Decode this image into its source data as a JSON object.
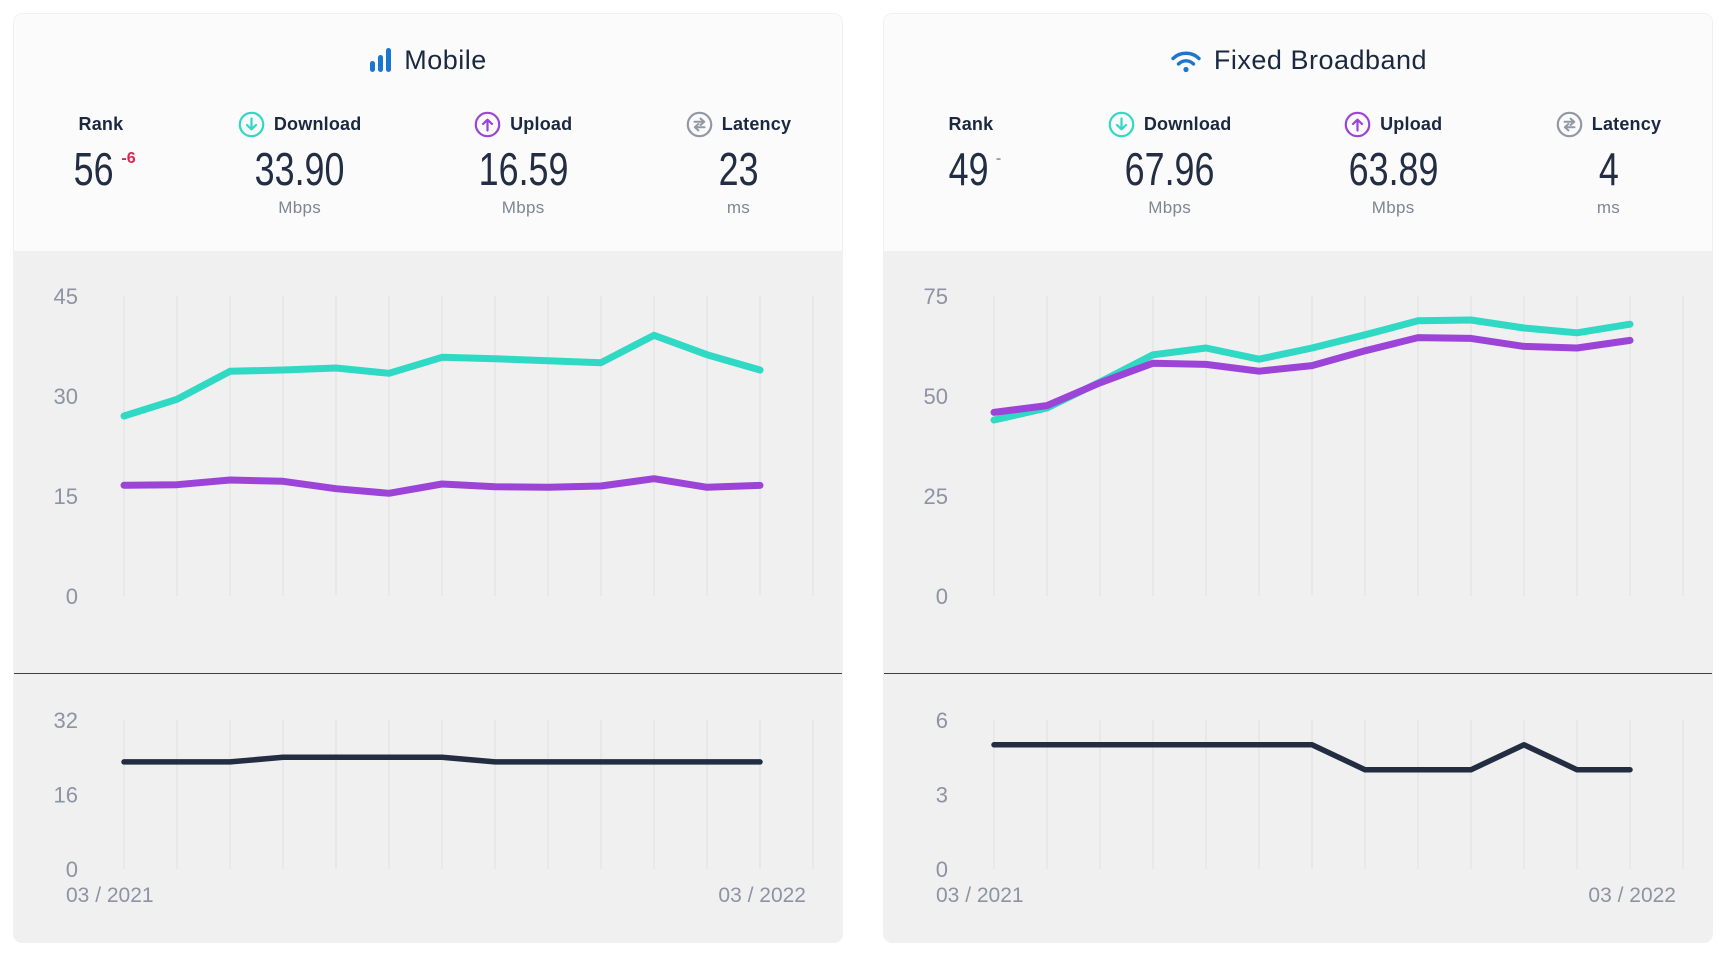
{
  "colors": {
    "accent_blue": "#1b76d2",
    "teal": "#2fd9c3",
    "purple": "#9c44d8",
    "navy_text": "#1b2940",
    "dark_line": "#222d42",
    "unit_gray": "#7e8594",
    "axis_text": "#8d93a2",
    "rank_down_red": "#e02350",
    "rank_flat_gray": "#9aa0ad",
    "card_head_bg": "#fbfbfb",
    "chart_bg": "#f0f0f1",
    "gridline": "#e4e4e6",
    "divider": "#3f3f3f",
    "icon_gray": "#9298a5"
  },
  "panels": [
    {
      "title": "Mobile",
      "icon": "mobile-signal-bars-icon",
      "stats": {
        "rank": {
          "label": "Rank",
          "value": "56",
          "change": "-6"
        },
        "download": {
          "label": "Download",
          "value": "33.90",
          "unit": "Mbps"
        },
        "upload": {
          "label": "Upload",
          "value": "16.59",
          "unit": "Mbps"
        },
        "latency": {
          "label": "Latency",
          "value": "23",
          "unit": "ms"
        }
      }
    },
    {
      "title": "Fixed Broadband",
      "icon": "wifi-icon",
      "stats": {
        "rank": {
          "label": "Rank",
          "value": "49",
          "change": "-"
        },
        "download": {
          "label": "Download",
          "value": "67.96",
          "unit": "Mbps"
        },
        "upload": {
          "label": "Upload",
          "value": "63.89",
          "unit": "Mbps"
        },
        "latency": {
          "label": "Latency",
          "value": "4",
          "unit": "ms"
        }
      }
    }
  ],
  "chart_data": [
    {
      "target": "chart-mobile-speed",
      "panel": "Mobile",
      "slot": "speed",
      "type": "line",
      "x": [
        "03/2021",
        "04/2021",
        "05/2021",
        "06/2021",
        "07/2021",
        "08/2021",
        "09/2021",
        "10/2021",
        "11/2021",
        "12/2021",
        "01/2022",
        "02/2022",
        "03/2022"
      ],
      "ylim": [
        0,
        45
      ],
      "yticks": [
        0,
        15,
        30,
        45
      ],
      "grid": "vertical-only",
      "legend": "none",
      "x_tick_labels": [],
      "series": [
        {
          "name": "Download (Mbps)",
          "color": "teal",
          "values": [
            27.0,
            29.5,
            33.7,
            33.9,
            34.2,
            33.4,
            35.8,
            35.6,
            35.3,
            35.0,
            39.1,
            36.2,
            33.9
          ]
        },
        {
          "name": "Upload (Mbps)",
          "color": "purple",
          "values": [
            16.6,
            16.7,
            17.4,
            17.2,
            16.1,
            15.4,
            16.8,
            16.4,
            16.3,
            16.5,
            17.6,
            16.3,
            16.59
          ]
        }
      ]
    },
    {
      "target": "chart-mobile-latency",
      "panel": "Mobile",
      "slot": "latency",
      "type": "line",
      "x": [
        "03/2021",
        "04/2021",
        "05/2021",
        "06/2021",
        "07/2021",
        "08/2021",
        "09/2021",
        "10/2021",
        "11/2021",
        "12/2021",
        "01/2022",
        "02/2022",
        "03/2022"
      ],
      "ylim": [
        0,
        32
      ],
      "yticks": [
        0,
        16,
        32
      ],
      "grid": "vertical-only",
      "legend": "none",
      "x_tick_labels": [
        "03 / 2021",
        "03 / 2022"
      ],
      "series": [
        {
          "name": "Latency (ms)",
          "color": "dark_line",
          "values": [
            23,
            23,
            23,
            24,
            24,
            24,
            24,
            23,
            23,
            23,
            23,
            23,
            23
          ]
        }
      ]
    },
    {
      "target": "chart-fixed-speed",
      "panel": "Fixed Broadband",
      "slot": "speed",
      "type": "line",
      "x": [
        "03/2021",
        "04/2021",
        "05/2021",
        "06/2021",
        "07/2021",
        "08/2021",
        "09/2021",
        "10/2021",
        "11/2021",
        "12/2021",
        "01/2022",
        "02/2022",
        "03/2022"
      ],
      "ylim": [
        0,
        75
      ],
      "yticks": [
        0,
        25,
        50,
        75
      ],
      "grid": "vertical-only",
      "legend": "none",
      "x_tick_labels": [],
      "series": [
        {
          "name": "Download (Mbps)",
          "color": "teal",
          "values": [
            44.0,
            47.0,
            53.5,
            60.3,
            62.0,
            59.2,
            62.0,
            65.3,
            68.8,
            69.0,
            67.0,
            65.8,
            67.96
          ]
        },
        {
          "name": "Upload (Mbps)",
          "color": "purple",
          "values": [
            45.9,
            47.6,
            53.3,
            58.2,
            57.9,
            56.2,
            57.6,
            61.3,
            64.6,
            64.4,
            62.4,
            62.0,
            63.89
          ]
        }
      ]
    },
    {
      "target": "chart-fixed-latency",
      "panel": "Fixed Broadband",
      "slot": "latency",
      "type": "line",
      "x": [
        "03/2021",
        "04/2021",
        "05/2021",
        "06/2021",
        "07/2021",
        "08/2021",
        "09/2021",
        "10/2021",
        "11/2021",
        "12/2021",
        "01/2022",
        "02/2022",
        "03/2022"
      ],
      "ylim": [
        0,
        6
      ],
      "yticks": [
        0,
        3,
        6
      ],
      "grid": "vertical-only",
      "legend": "none",
      "x_tick_labels": [
        "03 / 2021",
        "03 / 2022"
      ],
      "series": [
        {
          "name": "Latency (ms)",
          "color": "dark_line",
          "values": [
            5,
            5,
            5,
            5,
            5,
            5,
            5,
            4,
            4,
            4,
            5,
            4,
            4
          ]
        }
      ]
    }
  ]
}
